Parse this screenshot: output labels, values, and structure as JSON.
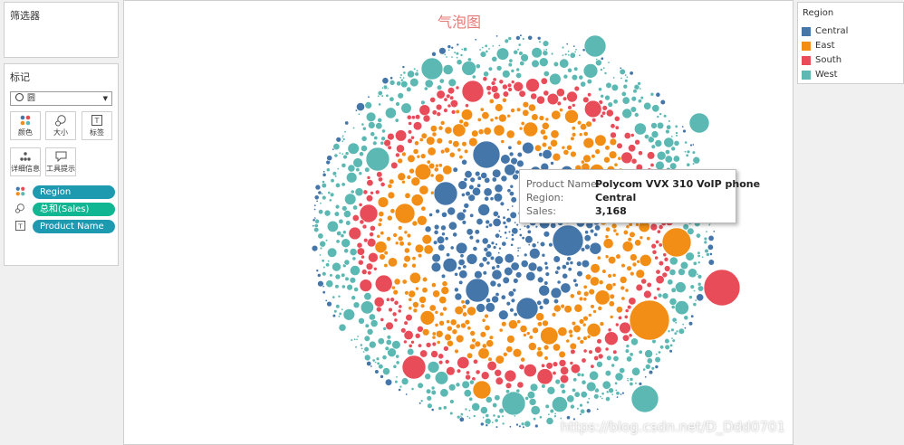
{
  "filters": {
    "title": "筛选器"
  },
  "marks": {
    "title": "标记",
    "mark_type": "圆",
    "buttons": [
      {
        "label": "颜色",
        "icon": "color-dots-icon"
      },
      {
        "label": "大小",
        "icon": "size-icon"
      },
      {
        "label": "标签",
        "icon": "text-label-icon"
      },
      {
        "label": "详细信息",
        "icon": "detail-icon"
      },
      {
        "label": "工具提示",
        "icon": "tooltip-icon"
      }
    ],
    "pills": [
      {
        "label": "Region",
        "icon": "color-dots-icon",
        "color": "#1e9ab0"
      },
      {
        "label": "总和(Sales)",
        "icon": "size-icon",
        "color": "#10b592"
      },
      {
        "label": "Product Name",
        "icon": "text-label-icon",
        "color": "#1e9ab0"
      }
    ]
  },
  "viz": {
    "title": "气泡图"
  },
  "legend": {
    "title": "Region",
    "items": [
      {
        "name": "Central",
        "color": "#4476aa"
      },
      {
        "name": "East",
        "color": "#f28e16"
      },
      {
        "name": "South",
        "color": "#e84c59"
      },
      {
        "name": "West",
        "color": "#5cb8b2"
      }
    ]
  },
  "tooltip": {
    "rows": [
      {
        "key": "Product Name:",
        "value": "Polycom VVX 310 VoIP phone"
      },
      {
        "key": "Region:",
        "value": "Central"
      },
      {
        "key": "Sales:",
        "value": "3,168"
      }
    ]
  },
  "watermark": "https://blog.csdn.net/D_Ddd0701"
}
